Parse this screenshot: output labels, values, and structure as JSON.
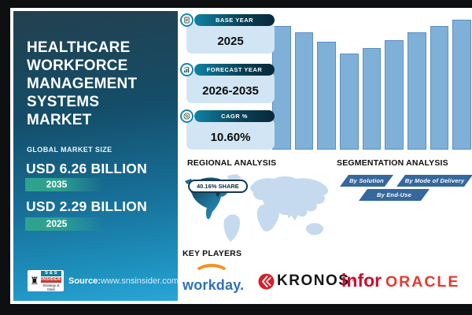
{
  "left_panel": {
    "title_lines": [
      "HEALTHCARE",
      "WORKFORCE",
      "MANAGEMENT",
      "SYSTEMS",
      "MARKET"
    ],
    "market_size_label": "GLOBAL MARKET SIZE",
    "projected": {
      "value": "USD 6.26 BILLION",
      "year": "2035"
    },
    "base": {
      "value": "USD 2.29 BILLION",
      "year": "2025"
    },
    "source_label": "Source:",
    "source_url": "www.snsinsider.com",
    "logo": {
      "line1": "S & S",
      "line2": "INSIDER",
      "line3": "Strategy & Stats"
    }
  },
  "stat_cards": [
    {
      "label": "BASE YEAR",
      "value": "2025",
      "icon": "document-report-icon"
    },
    {
      "label": "FORECAST YEAR",
      "value": "2026-2035",
      "icon": "bar-chart-growth-icon"
    },
    {
      "label": "CAGR %",
      "value": "10.60%",
      "icon": "percent-globe-icon"
    }
  ],
  "regional_analysis": {
    "heading": "REGIONAL ANALYSIS",
    "share_badge": "40.16% SHARE",
    "highlighted_region": "North America"
  },
  "segmentation_analysis": {
    "heading": "SEGMENTATION ANALYSIS",
    "buttons": [
      "By Solution",
      "By Mode of Delivery",
      "By End-Use"
    ]
  },
  "key_players": {
    "heading": "KEY PLAYERS",
    "brands": [
      "workday.",
      "KRONOS",
      "infor",
      "ORACLE"
    ],
    "kronos_reg": "®"
  },
  "chart_data": {
    "type": "bar",
    "title": "",
    "xlabel": "",
    "ylabel": "",
    "categories": [
      "",
      "",
      "",
      "",
      "",
      "",
      "",
      "",
      ""
    ],
    "values": [
      95,
      90,
      83,
      74,
      78,
      84,
      90,
      95,
      100
    ],
    "ylim": [
      0,
      100
    ],
    "grid": false,
    "legend": false,
    "note": "decorative unlabeled growth bars, V-shaped dip then rise"
  },
  "colors": {
    "frame_black": "#0e0f10",
    "panel_top": "#23404f",
    "panel_bottom": "#29a6d8",
    "year_badge_green": "#2fa28f",
    "card_body_blue": "#d2e5f4",
    "pill_teal": "#0f82a3",
    "pill_dark": "#07293b",
    "bar_fill": "#7fb0d8",
    "bar_border": "#5e8ec0",
    "map_light": "#c5daee",
    "map_highlight_dark": "#0e3a52",
    "map_highlight_light": "#2ea4d8",
    "segment_button_blue": "#35689d",
    "workday_blue": "#2e71b9",
    "workday_orange": "#f6921e",
    "kronos_red": "#d5202a",
    "infor_red": "#c8102e",
    "oracle_red": "#e8382f"
  }
}
